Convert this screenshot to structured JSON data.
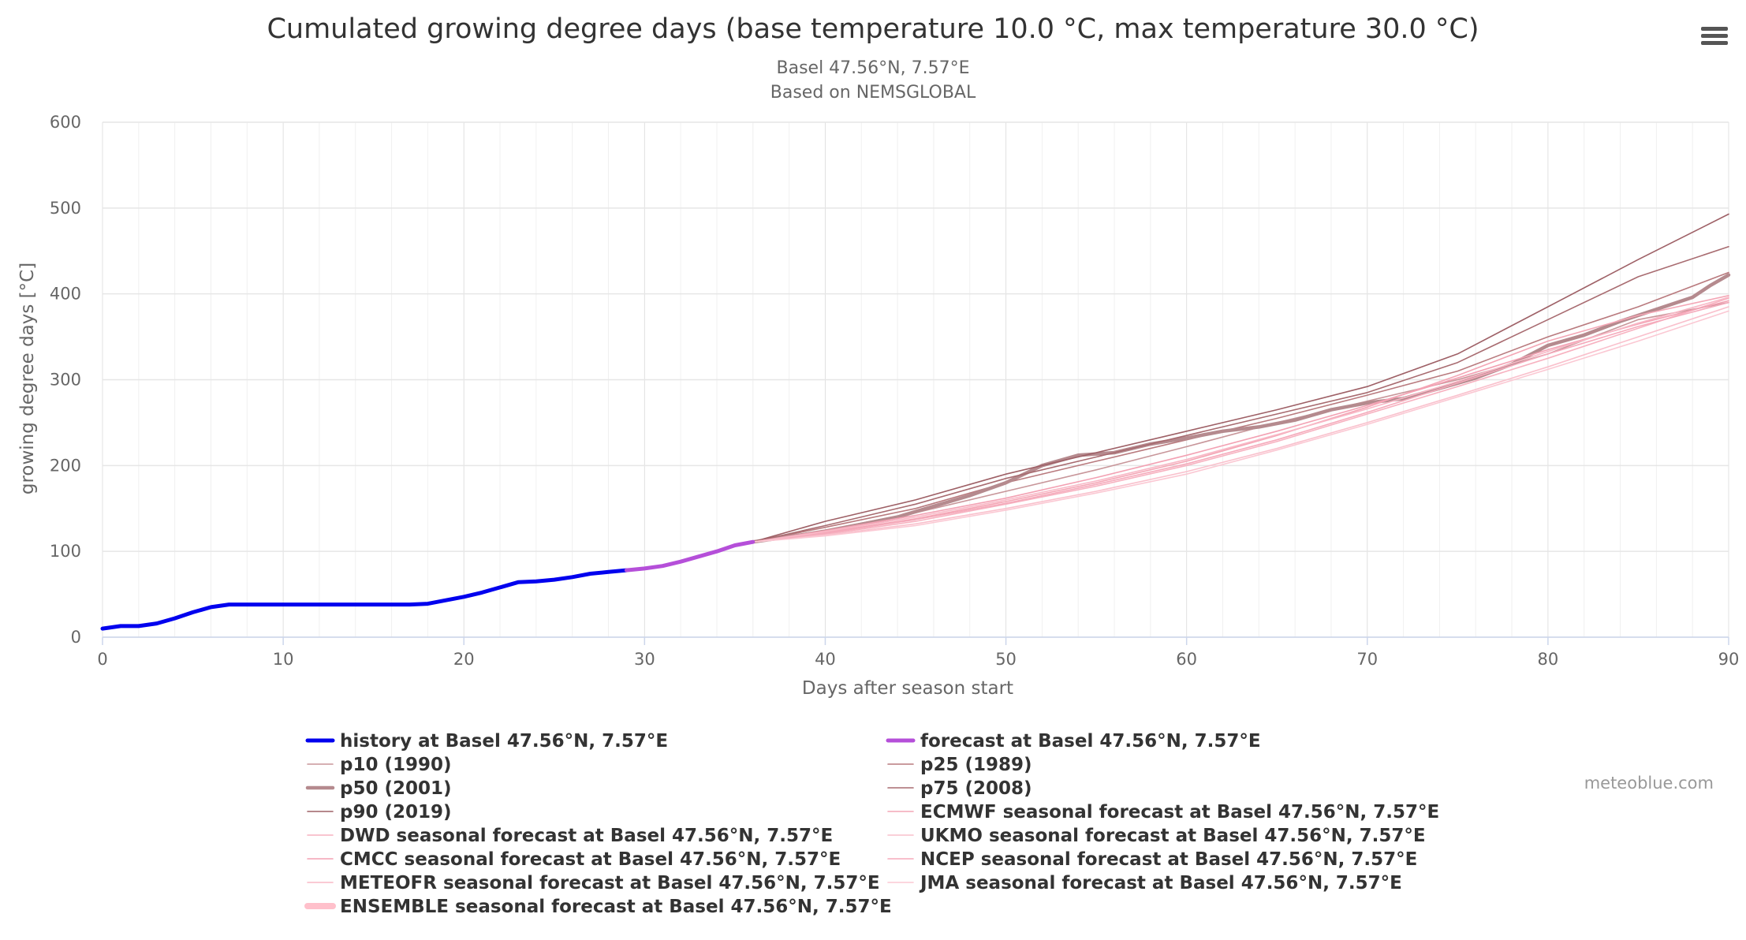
{
  "chart_data": {
    "type": "line",
    "title": "Cumulated growing degree days (base temperature 10.0 °C, max temperature 30.0 °C)",
    "subtitle_lines": [
      "Basel 47.56°N, 7.57°E",
      "Based on NEMSGLOBAL"
    ],
    "xlabel": "Days after season start",
    "ylabel": "growing degree days [°C]",
    "xlim": [
      0,
      90
    ],
    "ylim": [
      0,
      600
    ],
    "x_ticks": [
      0,
      10,
      20,
      30,
      40,
      50,
      60,
      70,
      80,
      90
    ],
    "y_ticks": [
      0,
      100,
      200,
      300,
      400,
      500,
      600
    ],
    "grid": true,
    "legend_position": "bottom",
    "credits": "meteoblue.com",
    "series": [
      {
        "name": "history at Basel 47.56°N, 7.57°E",
        "color": "#0000ee",
        "width": 5,
        "x": [
          0,
          1,
          2,
          3,
          4,
          5,
          6,
          7,
          8,
          9,
          10,
          11,
          12,
          13,
          14,
          15,
          16,
          17,
          18,
          19,
          20,
          21,
          22,
          23,
          24,
          25,
          26,
          27,
          28,
          29
        ],
        "y": [
          10,
          13,
          13,
          16,
          22,
          29,
          35,
          38,
          38,
          38,
          38,
          38,
          38,
          38,
          38,
          38,
          38,
          38,
          39,
          43,
          47,
          52,
          58,
          64,
          65,
          67,
          70,
          74,
          76,
          78
        ]
      },
      {
        "name": "forecast at Basel 47.56°N, 7.57°E",
        "color": "#b54fd9",
        "width": 5,
        "x": [
          29,
          30,
          31,
          32,
          33,
          34,
          35,
          36
        ],
        "y": [
          78,
          80,
          83,
          88,
          94,
          100,
          107,
          111
        ]
      },
      {
        "name": "p10 (1990)",
        "color": "#c8969a",
        "width": 1.6,
        "x": [
          36,
          40,
          45,
          50,
          55,
          60,
          65,
          70,
          75,
          80,
          85,
          90
        ],
        "y": [
          111,
          125,
          145,
          170,
          195,
          222,
          250,
          275,
          300,
          330,
          370,
          390
        ]
      },
      {
        "name": "p25 (1989)",
        "color": "#b97a7e",
        "width": 1.6,
        "x": [
          36,
          40,
          45,
          50,
          55,
          60,
          65,
          70,
          75,
          80,
          85,
          90
        ],
        "y": [
          111,
          128,
          150,
          180,
          205,
          230,
          255,
          282,
          310,
          350,
          385,
          425
        ]
      },
      {
        "name": "p50 (2001)",
        "color": "#b58a8e",
        "width": 4.5,
        "x": [
          36,
          40,
          44,
          48,
          50,
          52,
          54,
          56,
          58,
          60,
          62,
          64,
          66,
          68,
          70,
          72,
          74,
          76,
          78,
          80,
          82,
          84,
          86,
          88,
          89,
          90
        ],
        "y": [
          111,
          123,
          140,
          165,
          180,
          200,
          212,
          215,
          225,
          232,
          240,
          245,
          253,
          265,
          273,
          278,
          290,
          302,
          318,
          340,
          352,
          368,
          382,
          396,
          410,
          422
        ]
      },
      {
        "name": "p75 (2008)",
        "color": "#a86b70",
        "width": 1.6,
        "x": [
          36,
          40,
          45,
          50,
          55,
          60,
          65,
          70,
          75,
          80,
          85,
          90
        ],
        "y": [
          111,
          130,
          155,
          185,
          210,
          235,
          260,
          285,
          320,
          370,
          420,
          455
        ]
      },
      {
        "name": "p90 (2019)",
        "color": "#9e6066",
        "width": 1.6,
        "x": [
          36,
          40,
          45,
          50,
          55,
          60,
          65,
          70,
          75,
          80,
          85,
          90
        ],
        "y": [
          111,
          135,
          160,
          190,
          215,
          240,
          265,
          292,
          330,
          385,
          440,
          493
        ]
      },
      {
        "name": "ECMWF seasonal forecast at Basel 47.56°N, 7.57°E",
        "color": "#f4a6b5",
        "width": 1.6,
        "x": [
          36,
          40,
          45,
          50,
          55,
          60,
          65,
          70,
          75,
          80,
          85,
          90
        ],
        "y": [
          111,
          122,
          138,
          158,
          180,
          205,
          235,
          268,
          305,
          345,
          375,
          398
        ]
      },
      {
        "name": "DWD seasonal forecast at Basel 47.56°N, 7.57°E",
        "color": "#f7b2c0",
        "width": 1.6,
        "x": [
          36,
          40,
          45,
          50,
          55,
          60,
          65,
          70,
          75,
          80,
          85,
          90
        ],
        "y": [
          111,
          120,
          135,
          155,
          176,
          200,
          228,
          260,
          292,
          325,
          360,
          395
        ]
      },
      {
        "name": "UKMO seasonal forecast at Basel 47.56°N, 7.57°E",
        "color": "#f9c0cc",
        "width": 1.6,
        "x": [
          36,
          40,
          45,
          50,
          55,
          60,
          65,
          70,
          75,
          80,
          85,
          90
        ],
        "y": [
          111,
          119,
          132,
          150,
          170,
          193,
          220,
          250,
          282,
          315,
          350,
          385
        ]
      },
      {
        "name": "CMCC seasonal forecast at Basel 47.56°N, 7.57°E",
        "color": "#f3a1b3",
        "width": 1.6,
        "x": [
          36,
          40,
          45,
          50,
          55,
          60,
          65,
          70,
          75,
          80,
          85,
          90
        ],
        "y": [
          111,
          124,
          142,
          162,
          186,
          212,
          240,
          270,
          302,
          335,
          365,
          392
        ]
      },
      {
        "name": "NCEP seasonal forecast at Basel 47.56°N, 7.57°E",
        "color": "#f5aabb",
        "width": 1.6,
        "x": [
          36,
          40,
          45,
          50,
          55,
          60,
          65,
          70,
          75,
          80,
          85,
          90
        ],
        "y": [
          111,
          121,
          137,
          156,
          178,
          202,
          230,
          262,
          296,
          330,
          362,
          390
        ]
      },
      {
        "name": "METEOFR seasonal forecast at Basel 47.56°N, 7.57°E",
        "color": "#f8b8c6",
        "width": 1.6,
        "x": [
          36,
          40,
          45,
          50,
          55,
          60,
          65,
          70,
          75,
          80,
          85,
          90
        ],
        "y": [
          111,
          123,
          140,
          160,
          182,
          207,
          236,
          266,
          298,
          333,
          366,
          396
        ]
      },
      {
        "name": "JMA seasonal forecast at Basel 47.56°N, 7.57°E",
        "color": "#fbc8d3",
        "width": 1.6,
        "x": [
          36,
          40,
          45,
          50,
          55,
          60,
          65,
          70,
          75,
          80,
          85,
          90
        ],
        "y": [
          111,
          118,
          130,
          148,
          168,
          190,
          218,
          248,
          280,
          312,
          345,
          380
        ]
      },
      {
        "name": "ENSEMBLE seasonal forecast at Basel 47.56°N, 7.57°E",
        "color": "#ffc0cb",
        "width": 8,
        "x": [
          36,
          40,
          45,
          50,
          55,
          60,
          65,
          70,
          75,
          80,
          85,
          90
        ],
        "y": [
          111,
          121,
          137,
          156,
          177,
          201,
          228,
          258,
          290,
          322,
          358,
          393
        ]
      }
    ]
  },
  "ui": {
    "menu_icon": "hamburger-menu-icon"
  }
}
